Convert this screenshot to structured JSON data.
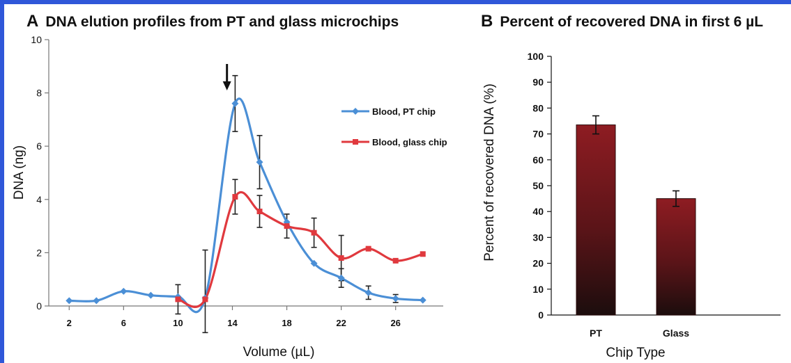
{
  "colors": {
    "frame": "#2f57d9",
    "pt_series": "#4b8fd6",
    "glass_series": "#e0393e",
    "bar_top": "#8e1c22",
    "bar_bottom": "#1c0d0d"
  },
  "panel_a": {
    "letter": "A",
    "title": "DNA elution profiles from PT and glass microchips"
  },
  "panel_b": {
    "letter": "B",
    "title": "Percent of recovered DNA in first 6 µL"
  },
  "chart_data": [
    {
      "type": "line",
      "xlabel": "Volume (µL)",
      "ylabel": "DNA (ng)",
      "xlim": [
        0.5,
        29.5
      ],
      "ylim": [
        0,
        10
      ],
      "x_ticks": [
        2,
        6,
        10,
        14,
        18,
        22,
        26
      ],
      "y_ticks": [
        0,
        2,
        4,
        6,
        8,
        10
      ],
      "legend_position": "right",
      "grid": false,
      "annotation": {
        "type": "arrow-down",
        "x": 13.6
      },
      "series": [
        {
          "name": "Blood, PT chip",
          "marker": "diamond",
          "x": [
            2,
            4,
            6,
            8,
            10,
            12,
            14.2,
            16,
            18,
            20,
            22,
            24,
            26,
            28
          ],
          "y": [
            0.2,
            0.2,
            0.55,
            0.4,
            0.35,
            0.3,
            7.6,
            5.4,
            3.15,
            1.6,
            1.05,
            0.5,
            0.28,
            0.22
          ],
          "error": [
            null,
            null,
            null,
            null,
            null,
            null,
            1.05,
            1.0,
            null,
            null,
            0.35,
            0.25,
            0.15,
            null
          ]
        },
        {
          "name": "Blood, glass chip",
          "marker": "square",
          "x": [
            10,
            12,
            14.2,
            16,
            18,
            20,
            22,
            24,
            26,
            28
          ],
          "y": [
            0.25,
            0.25,
            4.1,
            3.55,
            3.0,
            2.75,
            1.8,
            2.15,
            1.7,
            1.95
          ],
          "error": [
            0.55,
            1.85,
            0.65,
            0.6,
            0.45,
            0.55,
            0.85,
            null,
            null,
            null
          ]
        }
      ]
    },
    {
      "type": "bar",
      "xlabel": "Chip Type",
      "ylabel": "Percent of recovered DNA (%)",
      "ylim": [
        0,
        100
      ],
      "y_ticks": [
        0,
        10,
        20,
        30,
        40,
        50,
        60,
        70,
        80,
        90,
        100
      ],
      "categories": [
        "PT",
        "Glass"
      ],
      "values": [
        73.5,
        45
      ],
      "error": [
        3.5,
        3
      ],
      "grid": false
    }
  ]
}
